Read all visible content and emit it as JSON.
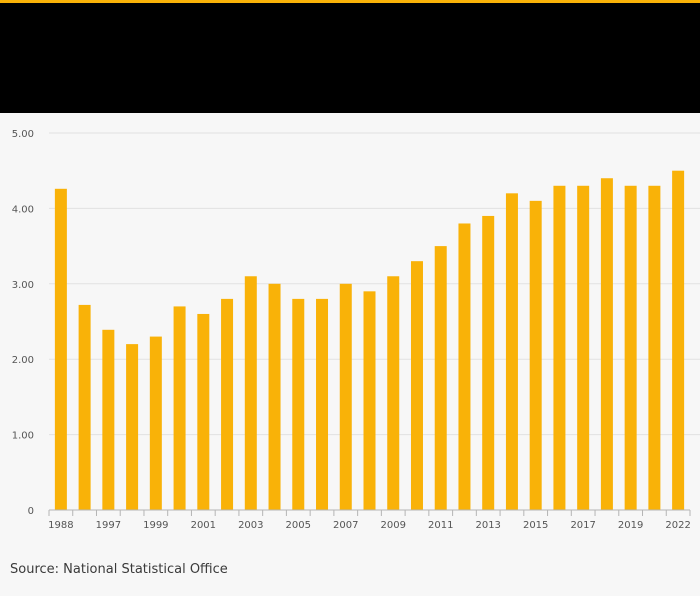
{
  "colors": {
    "accent": "#f9b208",
    "bar": "#f9b208",
    "header": "#000000",
    "background": "#f7f7f7"
  },
  "source": "Source: National Statistical Office",
  "chart_data": {
    "type": "bar",
    "title": "",
    "xlabel": "",
    "ylabel": "",
    "ylim": [
      0,
      5
    ],
    "y_ticks": [
      "0",
      "1.00",
      "2.00",
      "3.00",
      "4.00",
      "5.00"
    ],
    "grid": true,
    "categories": [
      "1988",
      "1996",
      "1997",
      "1998",
      "1999",
      "2000",
      "2001",
      "2002",
      "2003",
      "2004",
      "2005",
      "2006",
      "2007",
      "2008",
      "2009",
      "2010",
      "2011",
      "2012",
      "2013",
      "2014",
      "2015",
      "2016",
      "2017",
      "2018",
      "2019",
      "2020",
      "2022"
    ],
    "x_tick_labels": [
      "1988",
      "1997",
      "1999",
      "2001",
      "2003",
      "2005",
      "2007",
      "2009",
      "2011",
      "2013",
      "2015",
      "2017",
      "2019",
      "2022"
    ],
    "values": [
      4.26,
      2.72,
      2.39,
      2.2,
      2.3,
      2.7,
      2.6,
      2.8,
      3.1,
      3.0,
      2.8,
      2.8,
      3.0,
      2.9,
      3.1,
      3.3,
      3.5,
      3.8,
      3.9,
      4.2,
      4.1,
      4.3,
      4.3,
      4.4,
      4.3,
      4.3,
      4.5
    ]
  }
}
